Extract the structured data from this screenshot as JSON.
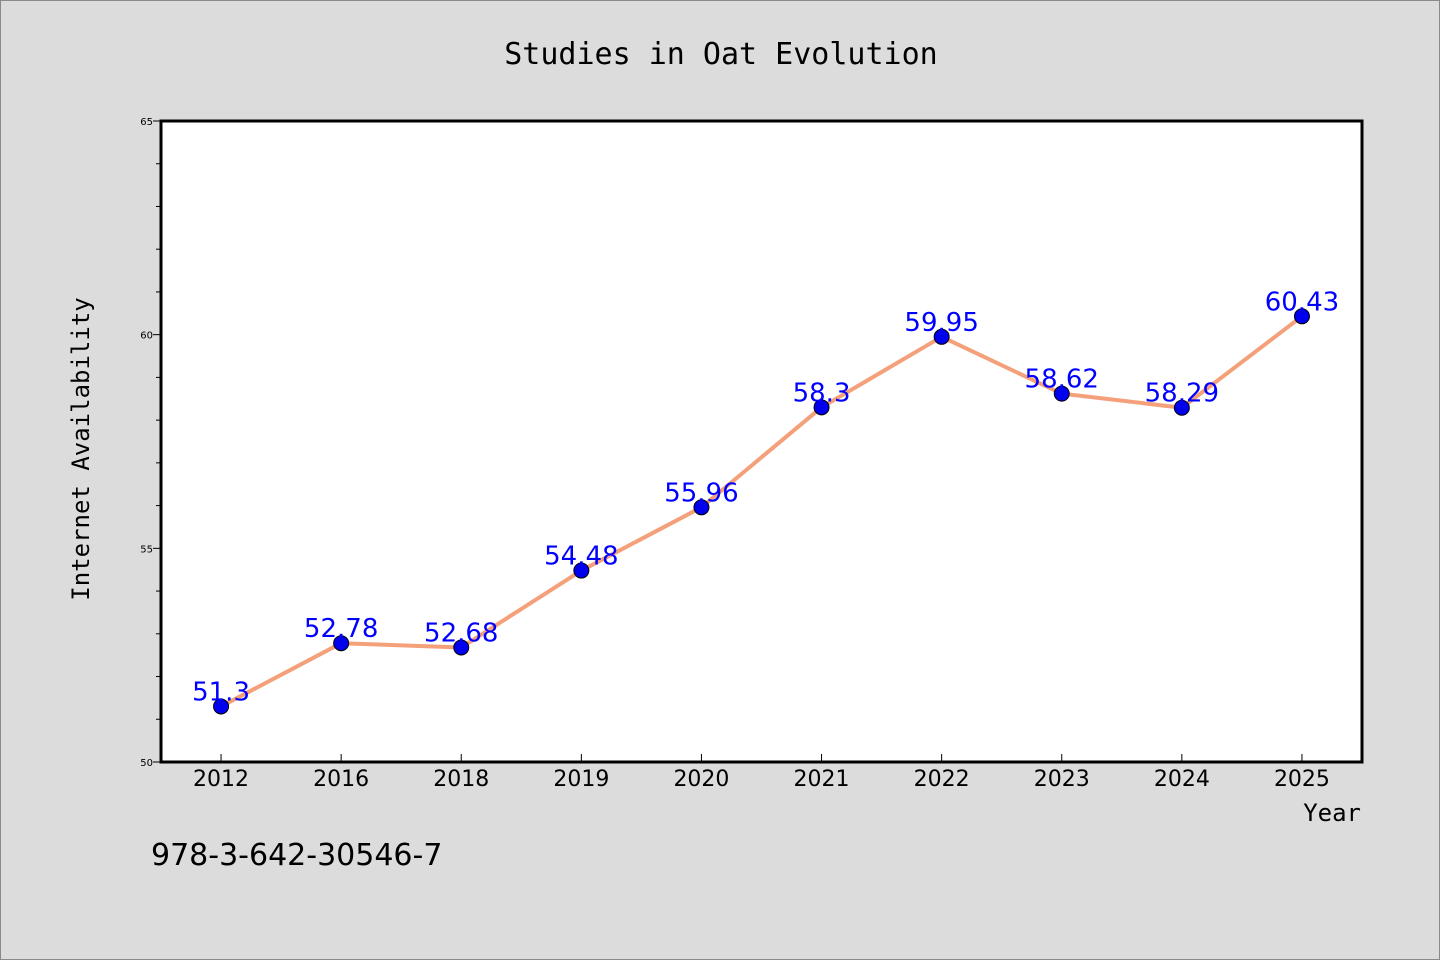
{
  "chart_data": {
    "type": "line",
    "title": "Studies in Oat Evolution",
    "xlabel": "Year",
    "ylabel": "Internet Availability",
    "categories": [
      "2012",
      "2016",
      "2018",
      "2019",
      "2020",
      "2021",
      "2022",
      "2023",
      "2024",
      "2025"
    ],
    "series": [
      {
        "name": "",
        "values": [
          51.3,
          52.78,
          52.68,
          54.48,
          55.96,
          58.3,
          59.95,
          58.62,
          58.29,
          60.43
        ],
        "data_labels": [
          "51.3",
          "52.78",
          "52.68",
          "54.48",
          "55.96",
          "58.3",
          "59.95",
          "58.62",
          "58.29",
          "60.43"
        ]
      }
    ],
    "ylim": [
      50,
      65
    ],
    "yticks": [
      "50",
      "55",
      "60",
      "65"
    ],
    "grid": false,
    "legend": "none",
    "colors": {
      "background": "#dcdcdc",
      "plot_background": "#ffffff",
      "line": "#f4a07a",
      "marker": "#0000ee",
      "data_label": "#0000ff",
      "axis": "#000000"
    }
  },
  "footer_text": "978-3-642-30546-7"
}
